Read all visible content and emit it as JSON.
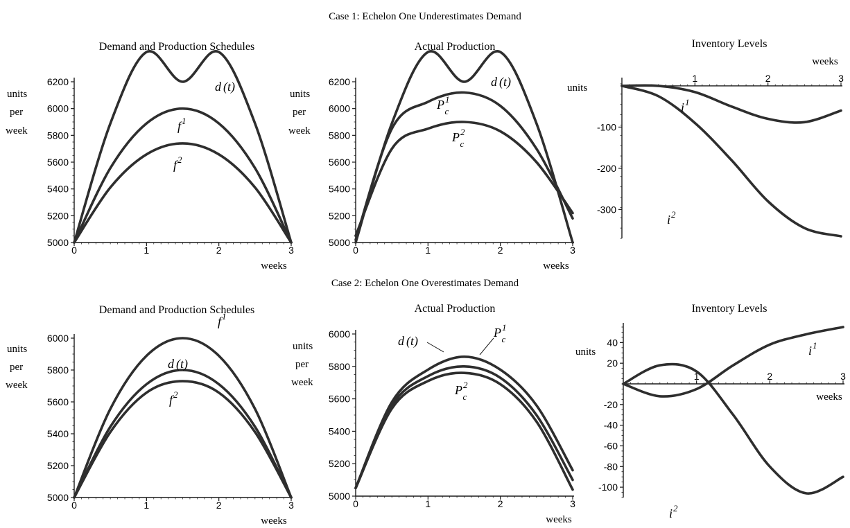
{
  "figure": {
    "case1_title": "Case 1: Echelon One Underestimates Demand",
    "case2_title": "Case 2: Echelon One Overestimates Demand"
  },
  "colors": {
    "curve": "#2e2e2e",
    "axis": "#1a1a1a",
    "text": "#1a1a1a"
  },
  "chart_data": [
    {
      "id": "c1_schedules",
      "type": "line",
      "title": "Demand and Production Schedules",
      "xlabel": "weeks",
      "ylabel": "units per week",
      "xlim": [
        0,
        3
      ],
      "ylim": [
        5000,
        6200
      ],
      "xticks": [
        0,
        1,
        2,
        3
      ],
      "yticks": [
        5000,
        5200,
        5400,
        5600,
        5800,
        6000,
        6200
      ],
      "x": [
        0,
        0.5,
        1,
        1.5,
        2,
        2.5,
        3
      ],
      "series": [
        {
          "name": "d(t)",
          "values": [
            5000,
            5889,
            6422,
            6200,
            6422,
            5889,
            5000
          ]
        },
        {
          "name": "f1",
          "values": [
            5000,
            5556,
            5889,
            6000,
            5889,
            5556,
            5000
          ]
        },
        {
          "name": "f2",
          "values": [
            5000,
            5411,
            5658,
            5740,
            5658,
            5411,
            5000
          ]
        }
      ],
      "labels": [
        {
          "main": "d",
          "paren": "(t)",
          "sup": "",
          "sub": ""
        },
        {
          "main": "f",
          "paren": "",
          "sup": "1",
          "sub": ""
        },
        {
          "main": "f",
          "paren": "",
          "sup": "2",
          "sub": ""
        }
      ]
    },
    {
      "id": "c1_actual",
      "type": "line",
      "title": "Actual Production",
      "xlabel": "weeks",
      "ylabel": "units per week",
      "xlim": [
        0,
        3
      ],
      "ylim": [
        5000,
        6200
      ],
      "xticks": [
        0,
        1,
        2,
        3
      ],
      "yticks": [
        5000,
        5200,
        5400,
        5600,
        5800,
        6000,
        6200
      ],
      "x": [
        0,
        0.5,
        1,
        1.5,
        2,
        2.5,
        3
      ],
      "series": [
        {
          "name": "d(t)",
          "values": [
            5000,
            5889,
            6422,
            6200,
            6422,
            5889,
            5000
          ]
        },
        {
          "name": "Pc1",
          "values": [
            5020,
            5850,
            6050,
            6120,
            6020,
            5700,
            5180
          ]
        },
        {
          "name": "Pc2",
          "values": [
            5050,
            5700,
            5850,
            5900,
            5830,
            5600,
            5220
          ]
        }
      ],
      "labels": [
        {
          "main": "d",
          "paren": "(t)",
          "sup": "",
          "sub": ""
        },
        {
          "main": "P",
          "paren": "",
          "sup": "1",
          "sub": "c"
        },
        {
          "main": "P",
          "paren": "",
          "sup": "2",
          "sub": "c"
        }
      ]
    },
    {
      "id": "c1_inventory",
      "type": "line",
      "title": "Inventory Levels",
      "xlabel": "weeks",
      "ylabel": "units",
      "xlim": [
        0,
        3
      ],
      "ylim": [
        -370,
        10
      ],
      "xticks": [
        1,
        2,
        3
      ],
      "yticks": [
        -100,
        -200,
        -300
      ],
      "x": [
        0,
        0.5,
        1,
        1.5,
        2,
        2.5,
        3
      ],
      "series": [
        {
          "name": "i1",
          "values": [
            0,
            0,
            -15,
            -50,
            -80,
            -88,
            -60
          ]
        },
        {
          "name": "i2",
          "values": [
            0,
            -25,
            -90,
            -180,
            -280,
            -345,
            -365
          ]
        }
      ],
      "labels": [
        {
          "main": "i",
          "paren": "",
          "sup": "1",
          "sub": ""
        },
        {
          "main": "i",
          "paren": "",
          "sup": "2",
          "sub": ""
        }
      ]
    },
    {
      "id": "c2_schedules",
      "type": "line",
      "title": "Demand and Production Schedules",
      "xlabel": "weeks",
      "ylabel": "units per week",
      "xlim": [
        0,
        3
      ],
      "ylim": [
        5000,
        6000
      ],
      "xticks": [
        0,
        1,
        2,
        3
      ],
      "yticks": [
        5000,
        5200,
        5400,
        5600,
        5800,
        6000
      ],
      "x": [
        0,
        0.5,
        1,
        1.5,
        2,
        2.5,
        3
      ],
      "series": [
        {
          "name": "f1",
          "values": [
            5000,
            5556,
            5889,
            6000,
            5889,
            5556,
            5000
          ]
        },
        {
          "name": "d(t)",
          "values": [
            5000,
            5444,
            5711,
            5800,
            5711,
            5444,
            5000
          ]
        },
        {
          "name": "f2",
          "values": [
            5000,
            5411,
            5658,
            5730,
            5658,
            5411,
            5000
          ]
        }
      ],
      "labels": [
        {
          "main": "f",
          "paren": "",
          "sup": "1",
          "sub": ""
        },
        {
          "main": "d",
          "paren": "(t)",
          "sup": "",
          "sub": ""
        },
        {
          "main": "f",
          "paren": "",
          "sup": "2",
          "sub": ""
        }
      ]
    },
    {
      "id": "c2_actual",
      "type": "line",
      "title": "Actual Production",
      "xlabel": "weeks",
      "ylabel": "units per week",
      "xlim": [
        0,
        3
      ],
      "ylim": [
        5000,
        6000
      ],
      "xticks": [
        0,
        1,
        2,
        3
      ],
      "yticks": [
        5000,
        5200,
        5400,
        5600,
        5800,
        6000
      ],
      "x": [
        0,
        0.5,
        1,
        1.5,
        2,
        2.5,
        3
      ],
      "series": [
        {
          "name": "Pc1",
          "values": [
            5050,
            5580,
            5780,
            5860,
            5780,
            5560,
            5160
          ]
        },
        {
          "name": "d(t)",
          "values": [
            5050,
            5560,
            5740,
            5800,
            5730,
            5500,
            5100
          ]
        },
        {
          "name": "Pc2",
          "values": [
            5050,
            5540,
            5710,
            5760,
            5690,
            5460,
            5040
          ]
        }
      ],
      "labels": [
        {
          "main": "P",
          "paren": "",
          "sup": "1",
          "sub": "c"
        },
        {
          "main": "d",
          "paren": "(t)",
          "sup": "",
          "sub": ""
        },
        {
          "main": "P",
          "paren": "",
          "sup": "2",
          "sub": "c"
        }
      ]
    },
    {
      "id": "c2_inventory",
      "type": "line",
      "title": "Inventory Levels",
      "xlabel": "weeks",
      "ylabel": "units",
      "xlim": [
        0,
        3
      ],
      "ylim": [
        -110,
        55
      ],
      "xticks": [
        1,
        2,
        3
      ],
      "yticks": [
        40,
        20,
        -20,
        -40,
        -60,
        -80,
        -100
      ],
      "x": [
        0,
        0.5,
        1,
        1.5,
        2,
        2.5,
        3
      ],
      "series": [
        {
          "name": "i1",
          "values": [
            0,
            -12,
            -5,
            18,
            38,
            48,
            55
          ]
        },
        {
          "name": "i2",
          "values": [
            0,
            18,
            12,
            -30,
            -80,
            -106,
            -90
          ]
        }
      ],
      "labels": [
        {
          "main": "i",
          "paren": "",
          "sup": "1",
          "sub": ""
        },
        {
          "main": "i",
          "paren": "",
          "sup": "2",
          "sub": ""
        }
      ]
    }
  ]
}
